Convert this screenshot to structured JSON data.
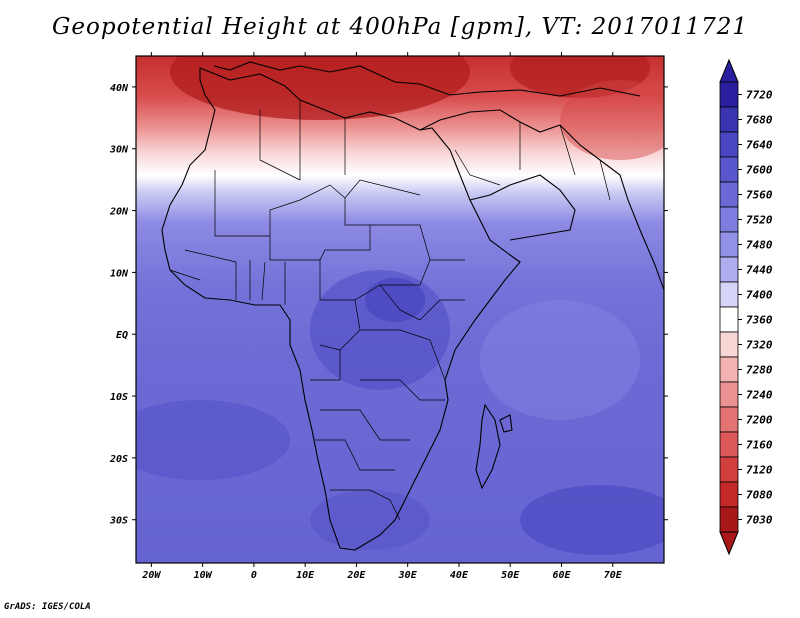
{
  "title": "Geopotential Height at 400hPa [gpm], VT: 2017011721",
  "credit": "GrADS: IGES/COLA",
  "map": {
    "lon_labels": [
      "20W",
      "10W",
      "0",
      "10E",
      "20E",
      "30E",
      "40E",
      "50E",
      "60E",
      "70E"
    ],
    "lat_labels": [
      "40N",
      "30N",
      "20N",
      "10N",
      "EQ",
      "10S",
      "20S",
      "30S"
    ],
    "lon_range": [
      -23,
      80
    ],
    "lat_range": [
      -37,
      45
    ]
  },
  "colorbar": {
    "levels": [
      "7720",
      "7680",
      "7640",
      "7600",
      "7560",
      "7520",
      "7480",
      "7440",
      "7400",
      "7360",
      "7320",
      "7280",
      "7240",
      "7200",
      "7160",
      "7120",
      "7080",
      "7030"
    ],
    "colors": [
      "#2a1f9e",
      "#3a34b0",
      "#4a45c0",
      "#5a57cc",
      "#6c69d6",
      "#7e7cde",
      "#9391e6",
      "#aeadee",
      "#d4d5f7",
      "#ffffff",
      "#f9d6d6",
      "#f3b3b3",
      "#ec9292",
      "#e47474",
      "#dc5858",
      "#d13e3e",
      "#c42a2a",
      "#a81818"
    ],
    "top_color": "#2a1f9e",
    "bottom_color": "#a81818"
  }
}
